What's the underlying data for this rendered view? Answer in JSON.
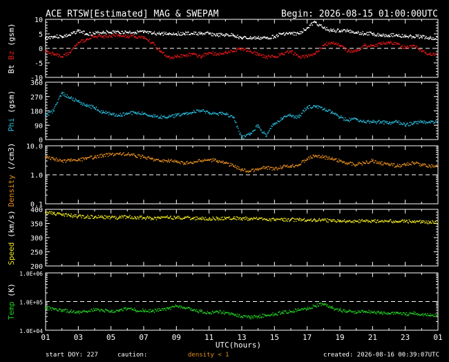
{
  "header": {
    "title": "ACE RTSW[Estimated] MAG & SWEPAM",
    "begin": "Begin: 2026-08-15 01:00:00UTC"
  },
  "footer": {
    "start_doy": "start DOY: 227",
    "caution": "caution:",
    "density_note": "density < 1",
    "created": "created: 2026-08-16 00:39:07UTC"
  },
  "colors": {
    "background": "#000000",
    "bt": "#ffffff",
    "bz": "#e01818",
    "phi": "#28b8d8",
    "density": "#e08a1e",
    "speed": "#e8e020",
    "temp": "#20c820",
    "frame": "#ffffff"
  },
  "x_axis": {
    "label": "UTC(hours)",
    "range": [
      1,
      25
    ],
    "ticks": [
      "01",
      "03",
      "05",
      "07",
      "09",
      "11",
      "13",
      "15",
      "17",
      "19",
      "21",
      "23",
      "01"
    ]
  },
  "chart_data": [
    {
      "type": "scatter",
      "panel": "mag",
      "ylabel_parts": [
        "Bt",
        "Bz",
        "(gsm)"
      ],
      "ylim": [
        -10,
        10
      ],
      "ticks": [
        "10",
        "5",
        "0",
        "-5",
        "-10"
      ],
      "dashed_line": 0,
      "series": [
        {
          "name": "Bt",
          "x": [
            1,
            1.5,
            2,
            2.5,
            3,
            3.5,
            4,
            4.5,
            5,
            5.5,
            6,
            6.5,
            7,
            7.5,
            8,
            8.5,
            9,
            9.5,
            10,
            10.5,
            11,
            11.5,
            12,
            12.5,
            13,
            13.5,
            14,
            14.5,
            15,
            15.5,
            16,
            16.5,
            17,
            17.5,
            18,
            18.5,
            19,
            19.5,
            20,
            20.5,
            21,
            21.5,
            22,
            22.5,
            23,
            23.5,
            24,
            24.5
          ],
          "y": [
            3.5,
            4,
            4,
            4.5,
            6,
            5,
            5,
            5.5,
            5.5,
            5.5,
            5.5,
            5.5,
            5.5,
            5,
            5,
            5,
            5,
            5,
            5,
            5,
            5,
            4.5,
            4.5,
            4.5,
            3.5,
            3.5,
            3.5,
            3.5,
            4,
            5,
            5,
            5,
            7,
            9,
            7,
            6,
            6,
            6,
            5.5,
            5,
            5,
            4.5,
            4.5,
            4.5,
            4,
            4,
            4,
            3.5
          ]
        },
        {
          "name": "Bz",
          "x": [
            1,
            1.5,
            2,
            2.5,
            3,
            3.5,
            4,
            4.5,
            5,
            5.5,
            6,
            6.5,
            7,
            7.5,
            8,
            8.5,
            9,
            9.5,
            10,
            10.5,
            11,
            11.5,
            12,
            12.5,
            13,
            13.5,
            14,
            14.5,
            15,
            15.5,
            16,
            16.5,
            17,
            17.5,
            18,
            18.5,
            19,
            19.5,
            20,
            20.5,
            21,
            21.5,
            22,
            22.5,
            23,
            23.5,
            24,
            24.5
          ],
          "y": [
            -1,
            -2,
            -3,
            -1.5,
            2,
            3,
            4,
            4,
            4,
            4.5,
            4,
            4,
            3.5,
            2,
            -1,
            -3,
            -3,
            -2.5,
            -2,
            -3,
            -1.5,
            -2,
            -1.5,
            -1,
            0,
            -1,
            -2,
            -3,
            -3,
            -2,
            -1,
            -3,
            -3,
            -2,
            1,
            2,
            1,
            -1,
            -1,
            1,
            1,
            1.5,
            2,
            1.5,
            0,
            1,
            -1,
            -2
          ]
        }
      ]
    },
    {
      "type": "scatter",
      "panel": "phi",
      "ylabel_parts": [
        "Phi",
        "(gsm)"
      ],
      "ylim": [
        0,
        360
      ],
      "ticks": [
        "360",
        "270",
        "180",
        "90",
        "0"
      ],
      "series": [
        {
          "name": "Phi",
          "x": [
            1,
            1.5,
            2,
            2.5,
            3,
            3.5,
            4,
            4.5,
            5,
            5.5,
            6,
            6.5,
            7,
            7.5,
            8,
            8.5,
            9,
            9.5,
            10,
            10.5,
            11,
            11.5,
            12,
            12.5,
            13,
            13.5,
            14,
            14.5,
            15,
            15.5,
            16,
            16.5,
            17,
            17.5,
            18,
            18.5,
            19,
            19.5,
            20,
            20.5,
            21,
            21.5,
            22,
            22.5,
            23,
            23.5,
            24,
            24.5
          ],
          "y": [
            150,
            180,
            290,
            260,
            240,
            210,
            200,
            170,
            160,
            150,
            160,
            170,
            160,
            150,
            140,
            140,
            150,
            160,
            170,
            180,
            170,
            160,
            160,
            140,
            10,
            30,
            90,
            20,
            100,
            130,
            150,
            140,
            200,
            210,
            190,
            170,
            140,
            120,
            130,
            110,
            110,
            110,
            100,
            110,
            90,
            100,
            110,
            110
          ]
        }
      ]
    },
    {
      "type": "scatter",
      "panel": "density",
      "ylabel_parts": [
        "Density",
        "(/cm3)"
      ],
      "scale": "log",
      "ylim": [
        0.1,
        10
      ],
      "ticks": [
        "10.0",
        "1.0",
        "0.1"
      ],
      "dashed_line": 1,
      "series": [
        {
          "name": "Density",
          "x": [
            1,
            1.5,
            2,
            2.5,
            3,
            3.5,
            4,
            4.5,
            5,
            5.5,
            6,
            6.5,
            7,
            7.5,
            8,
            8.5,
            9,
            9.5,
            10,
            10.5,
            11,
            11.5,
            12,
            12.5,
            13,
            13.5,
            14,
            14.5,
            15,
            15.5,
            16,
            16.5,
            17,
            17.5,
            18,
            18.5,
            19,
            19.5,
            20,
            20.5,
            21,
            21.5,
            22,
            22.5,
            23,
            23.5,
            24,
            24.5
          ],
          "y": [
            4,
            3.5,
            3,
            3,
            3.2,
            3.5,
            4,
            4.5,
            5,
            5.2,
            5,
            4.5,
            4,
            3.5,
            3,
            3,
            2.8,
            2.5,
            2.5,
            3,
            3.2,
            3,
            2.5,
            2,
            1.5,
            1.3,
            1.5,
            1.8,
            1.5,
            1.8,
            2,
            2.2,
            3.5,
            4.5,
            4,
            3.5,
            3,
            2.5,
            2.2,
            2.5,
            3,
            2.5,
            2.2,
            2,
            2.2,
            2.5,
            2.2,
            2
          ]
        }
      ]
    },
    {
      "type": "scatter",
      "panel": "speed",
      "ylabel_parts": [
        "Speed",
        "(km/s)"
      ],
      "ylim": [
        200,
        400
      ],
      "ticks": [
        "400",
        "350",
        "300",
        "250",
        "200"
      ],
      "series": [
        {
          "name": "Speed",
          "x": [
            1,
            1.5,
            2,
            2.5,
            3,
            3.5,
            4,
            4.5,
            5,
            5.5,
            6,
            6.5,
            7,
            7.5,
            8,
            8.5,
            9,
            9.5,
            10,
            10.5,
            11,
            11.5,
            12,
            12.5,
            13,
            13.5,
            14,
            14.5,
            15,
            15.5,
            16,
            16.5,
            17,
            17.5,
            18,
            18.5,
            19,
            19.5,
            20,
            20.5,
            21,
            21.5,
            22,
            22.5,
            23,
            23.5,
            24,
            24.5
          ],
          "y": [
            388,
            385,
            380,
            378,
            375,
            373,
            372,
            372,
            371,
            370,
            372,
            371,
            370,
            368,
            369,
            370,
            370,
            369,
            368,
            367,
            366,
            367,
            368,
            368,
            367,
            366,
            365,
            364,
            362,
            362,
            363,
            362,
            361,
            362,
            362,
            358,
            357,
            357,
            358,
            359,
            358,
            357,
            358,
            356,
            357,
            356,
            355,
            354
          ]
        }
      ]
    },
    {
      "type": "scatter",
      "panel": "temp",
      "ylabel_parts": [
        "Temp",
        "(K)"
      ],
      "scale": "log",
      "ylim": [
        10000,
        1000000
      ],
      "ticks": [
        "1.0E+06",
        "1.0E+05",
        "1.0E+04"
      ],
      "dashed_line": 100000,
      "series": [
        {
          "name": "Temp",
          "x": [
            1,
            1.5,
            2,
            2.5,
            3,
            3.5,
            4,
            4.5,
            5,
            5.5,
            6,
            6.5,
            7,
            7.5,
            8,
            8.5,
            9,
            9.5,
            10,
            10.5,
            11,
            11.5,
            12,
            12.5,
            13,
            13.5,
            14,
            14.5,
            15,
            15.5,
            16,
            16.5,
            17,
            17.5,
            18,
            18.5,
            19,
            19.5,
            20,
            20.5,
            21,
            21.5,
            22,
            22.5,
            23,
            23.5,
            24,
            24.5
          ],
          "y": [
            60000,
            55000,
            50000,
            45000,
            42000,
            45000,
            50000,
            48000,
            45000,
            50000,
            55000,
            50000,
            48000,
            45000,
            50000,
            55000,
            70000,
            60000,
            50000,
            45000,
            40000,
            45000,
            40000,
            35000,
            30000,
            28000,
            30000,
            32000,
            35000,
            40000,
            45000,
            50000,
            55000,
            70000,
            80000,
            60000,
            50000,
            45000,
            40000,
            45000,
            42000,
            40000,
            38000,
            40000,
            35000,
            38000,
            35000,
            32000
          ]
        }
      ]
    }
  ]
}
